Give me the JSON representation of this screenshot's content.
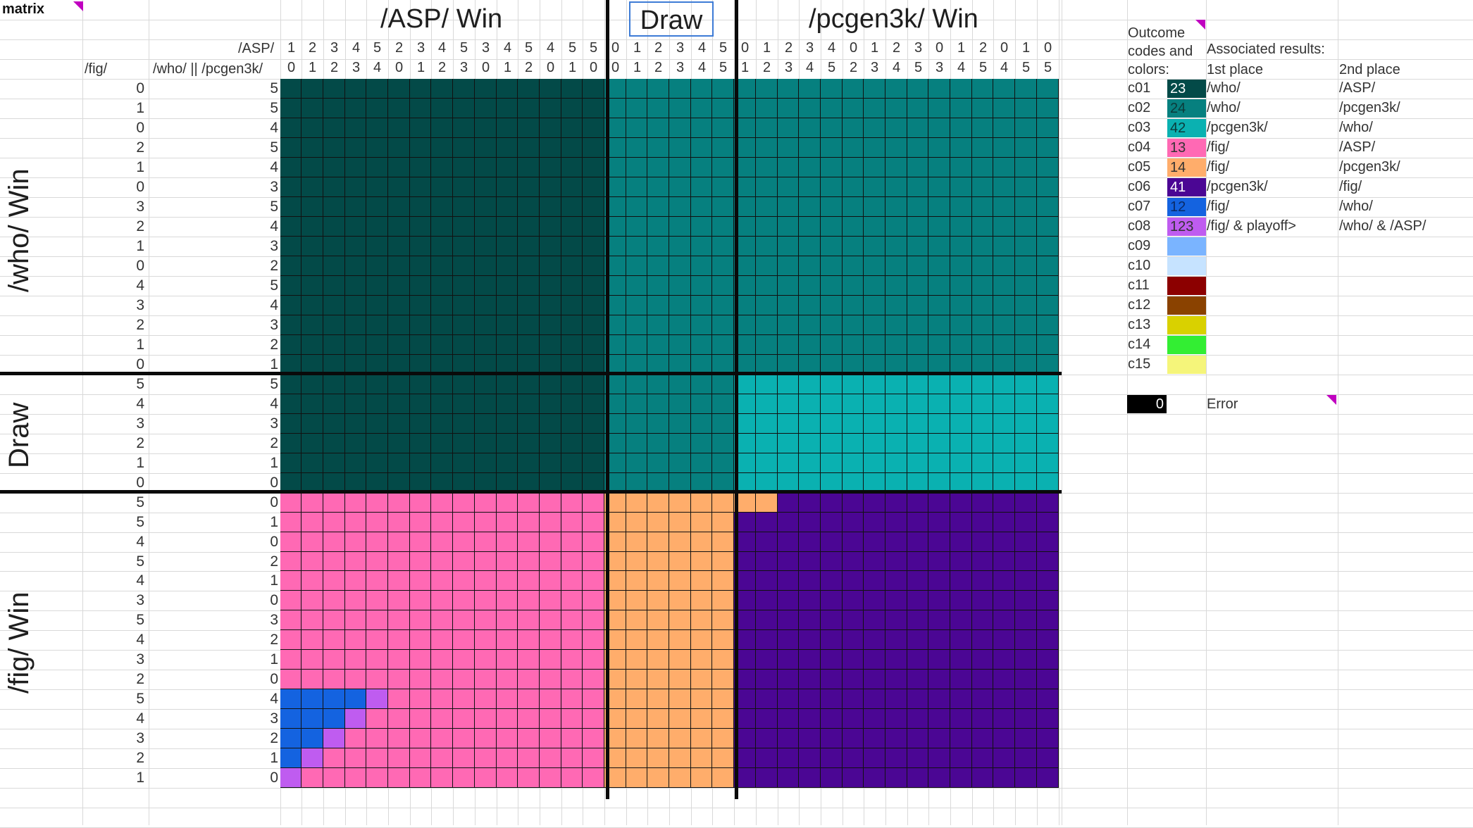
{
  "sheet": {
    "name_cell": "matrix"
  },
  "headers": {
    "asp_win": "/ASP/ Win",
    "draw": "Draw",
    "pcgen_win": "/pcgen3k/ Win",
    "asp_label": "/ASP/",
    "fig_label": "/fig/",
    "who_pcgen_label": "/who/ || /pcgen3k/"
  },
  "side_labels": {
    "who_win": "/who/ Win",
    "draw": "Draw",
    "fig_win": "/fig/ Win"
  },
  "top_row1": [
    "1",
    "2",
    "3",
    "4",
    "5",
    "2",
    "3",
    "4",
    "5",
    "3",
    "4",
    "5",
    "4",
    "5",
    "5",
    "0",
    "1",
    "2",
    "3",
    "4",
    "5",
    "0",
    "1",
    "2",
    "3",
    "4",
    "0",
    "1",
    "2",
    "3",
    "0",
    "1",
    "2",
    "0",
    "1",
    "0"
  ],
  "top_row2": [
    "0",
    "1",
    "2",
    "3",
    "4",
    "0",
    "1",
    "2",
    "3",
    "0",
    "1",
    "2",
    "0",
    "1",
    "0",
    "0",
    "1",
    "2",
    "3",
    "4",
    "5",
    "1",
    "2",
    "3",
    "4",
    "5",
    "2",
    "3",
    "4",
    "5",
    "3",
    "4",
    "5",
    "4",
    "5",
    "5"
  ],
  "left_fig": [
    "0",
    "1",
    "0",
    "2",
    "1",
    "0",
    "3",
    "2",
    "1",
    "0",
    "4",
    "3",
    "2",
    "1",
    "0",
    "5",
    "4",
    "3",
    "2",
    "1",
    "0",
    "5",
    "5",
    "4",
    "5",
    "4",
    "3",
    "5",
    "4",
    "3",
    "2",
    "5",
    "4",
    "3",
    "2",
    "1"
  ],
  "left_who": [
    "5",
    "5",
    "4",
    "5",
    "4",
    "3",
    "5",
    "4",
    "3",
    "2",
    "5",
    "4",
    "3",
    "2",
    "1",
    "5",
    "4",
    "3",
    "2",
    "1",
    "0",
    "0",
    "1",
    "0",
    "2",
    "1",
    "0",
    "3",
    "2",
    "1",
    "0",
    "4",
    "3",
    "2",
    "1",
    "0"
  ],
  "legend": {
    "title_line1": "Outcome",
    "title_line2": "codes and",
    "title_line3": "colors:",
    "assoc": "Associated results:",
    "first_place": "1st place",
    "second_place": "2nd place",
    "rows": [
      {
        "code": "c01",
        "value": "23",
        "first": "/who/",
        "second": "/ASP/",
        "color": "#034a48",
        "text": "#ffffff"
      },
      {
        "code": "c02",
        "value": "24",
        "first": "/who/",
        "second": "/pcgen3k/",
        "color": "#06807f",
        "text": "#0c3a3a"
      },
      {
        "code": "c03",
        "value": "42",
        "first": "/pcgen3k/",
        "second": "/who/",
        "color": "#0ab1b1",
        "text": "#0c3a3a"
      },
      {
        "code": "c04",
        "value": "13",
        "first": "/fig/",
        "second": "/ASP/",
        "color": "#ff69b4",
        "text": "#333333"
      },
      {
        "code": "c05",
        "value": "14",
        "first": "/fig/",
        "second": "/pcgen3k/",
        "color": "#ffad6b",
        "text": "#333333"
      },
      {
        "code": "c06",
        "value": "41",
        "first": "/pcgen3k/",
        "second": "/fig/",
        "color": "#4b0694",
        "text": "#ffffff"
      },
      {
        "code": "c07",
        "value": "12",
        "first": "/fig/",
        "second": "/who/",
        "color": "#1463e0",
        "text": "#0a2a66"
      },
      {
        "code": "c08",
        "value": "123",
        "first": "/fig/ & playoff>",
        "second": "/who/ & /ASP/",
        "color": "#bf5cf0",
        "text": "#333333"
      },
      {
        "code": "c09",
        "value": "",
        "first": "",
        "second": "",
        "color": "#7ab4ff",
        "text": "#333333"
      },
      {
        "code": "c10",
        "value": "",
        "first": "",
        "second": "",
        "color": "#c6e3ff",
        "text": "#333333"
      },
      {
        "code": "c11",
        "value": "",
        "first": "",
        "second": "",
        "color": "#8c0000",
        "text": "#333333"
      },
      {
        "code": "c12",
        "value": "",
        "first": "",
        "second": "",
        "color": "#8a4200",
        "text": "#333333"
      },
      {
        "code": "c13",
        "value": "",
        "first": "",
        "second": "",
        "color": "#d9d100",
        "text": "#333333"
      },
      {
        "code": "c14",
        "value": "",
        "first": "",
        "second": "",
        "color": "#33ee33",
        "text": "#333333"
      },
      {
        "code": "c15",
        "value": "",
        "first": "",
        "second": "",
        "color": "#f5f57a",
        "text": "#333333"
      }
    ],
    "error_value": "0",
    "error_label": "Error",
    "error_color": "#000000"
  },
  "matrix_colors": {
    "c01": "#034a48",
    "c02": "#06807f",
    "c03": "#0ab1b1",
    "c04": "#ff69b4",
    "c05": "#ffad6b",
    "c06": "#4b0694",
    "c07": "#1463e0",
    "c08": "#bf5cf0"
  }
}
